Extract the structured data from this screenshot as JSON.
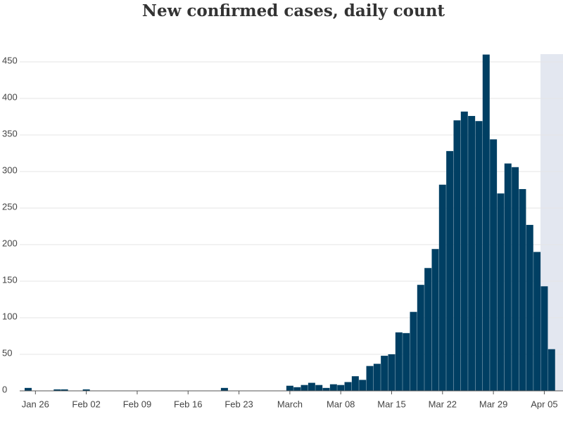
{
  "chart_data": {
    "type": "bar",
    "title": "New confirmed cases, daily count",
    "categories": [
      null,
      "Jan 26",
      null,
      null,
      null,
      null,
      null,
      null,
      "Feb 02",
      null,
      null,
      null,
      null,
      null,
      null,
      "Feb 09",
      null,
      null,
      null,
      null,
      null,
      null,
      "Feb 16",
      null,
      null,
      null,
      null,
      null,
      null,
      "Feb 23",
      null,
      null,
      null,
      null,
      null,
      null,
      "March",
      null,
      null,
      null,
      null,
      null,
      null,
      "Mar 08",
      null,
      null,
      null,
      null,
      null,
      null,
      "Mar 15",
      null,
      null,
      null,
      null,
      null,
      null,
      "Mar 22",
      null,
      null,
      null,
      null,
      null,
      null,
      "Mar 29",
      null,
      null,
      null,
      null,
      null,
      null,
      "Apr 05",
      null
    ],
    "values": [
      4,
      0,
      0,
      0,
      2,
      2,
      0,
      0,
      2,
      0,
      0,
      0,
      0,
      0,
      0,
      0,
      0,
      0,
      0,
      0,
      0,
      0,
      0,
      0,
      0,
      0,
      0,
      4,
      0,
      0,
      0,
      0,
      0,
      0,
      0,
      0,
      7,
      5,
      8,
      11,
      8,
      4,
      9,
      8,
      12,
      20,
      15,
      34,
      37,
      48,
      50,
      80,
      79,
      108,
      145,
      168,
      194,
      282,
      328,
      370,
      382,
      376,
      369,
      460,
      344,
      270,
      311,
      306,
      276,
      227,
      190,
      143,
      57
    ],
    "color": "#003f63",
    "ylim": [
      0,
      450
    ],
    "yticks": [
      0,
      50,
      100,
      150,
      200,
      250,
      300,
      350,
      400,
      450
    ],
    "grid": true
  }
}
